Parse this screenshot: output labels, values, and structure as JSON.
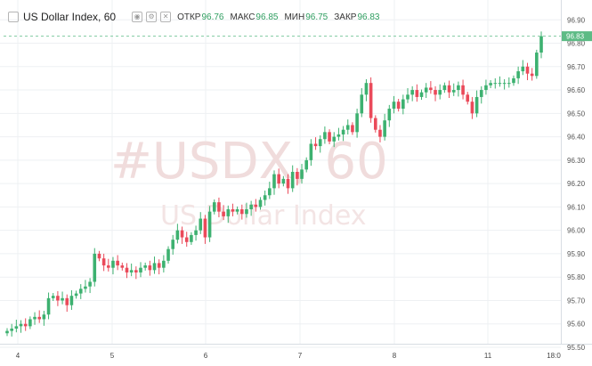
{
  "header": {
    "symbol": "US Dollar Index, 60",
    "open_label": "ОТКР",
    "open_value": "96.76",
    "high_label": "МАКС",
    "high_value": "96.85",
    "low_label": "МИН",
    "low_value": "96.75",
    "close_label": "ЗАКР",
    "close_value": "96.83"
  },
  "watermark": {
    "line1": "#USDX, 60",
    "line2": "US Dollar Index"
  },
  "colors": {
    "up": "#3db170",
    "down": "#ea4a5a",
    "last_price": "#5dbb85",
    "grid": "#eef0f3",
    "watermark": "#f0dcdc"
  },
  "chart_data": {
    "type": "candlestick",
    "title": "US Dollar Index, 60",
    "ylim": [
      95.5,
      96.92
    ],
    "y_ticks": [
      "96.90",
      "96.80",
      "96.70",
      "96.60",
      "96.50",
      "96.40",
      "96.30",
      "96.20",
      "96.10",
      "96.00",
      "95.90",
      "95.80",
      "95.70",
      "95.60",
      "95.50"
    ],
    "x_ticks": [
      "4",
      "5",
      "6",
      "7",
      "8",
      "11",
      "18:0"
    ],
    "last_price": "96.83",
    "grid": true,
    "close_series": [
      95.57,
      95.58,
      95.59,
      95.6,
      95.59,
      95.62,
      95.63,
      95.62,
      95.64,
      95.71,
      95.72,
      95.7,
      95.71,
      95.68,
      95.72,
      95.73,
      95.75,
      95.76,
      95.78,
      95.9,
      95.88,
      95.85,
      95.84,
      95.87,
      95.85,
      95.84,
      95.82,
      95.83,
      95.82,
      95.84,
      95.85,
      95.83,
      95.86,
      95.84,
      95.87,
      95.92,
      95.96,
      96.0,
      95.97,
      95.95,
      95.98,
      96.0,
      96.05,
      95.97,
      96.08,
      96.12,
      96.08,
      96.06,
      96.09,
      96.08,
      96.09,
      96.07,
      96.09,
      96.11,
      96.1,
      96.13,
      96.15,
      96.18,
      96.24,
      96.2,
      96.22,
      96.18,
      96.25,
      96.22,
      96.26,
      96.3,
      96.37,
      96.36,
      96.39,
      96.42,
      96.38,
      96.4,
      96.41,
      96.43,
      96.45,
      96.42,
      96.5,
      96.58,
      96.63,
      96.48,
      96.43,
      96.4,
      96.47,
      96.52,
      96.55,
      96.52,
      96.56,
      96.58,
      96.6,
      96.57,
      96.59,
      96.61,
      96.6,
      96.58,
      96.6,
      96.62,
      96.59,
      96.6,
      96.62,
      96.58,
      96.55,
      96.5,
      96.57,
      96.6,
      96.62,
      96.63,
      96.63,
      96.63,
      96.63,
      96.63,
      96.65,
      96.68,
      96.7,
      96.67,
      96.66,
      96.76,
      96.83
    ]
  }
}
